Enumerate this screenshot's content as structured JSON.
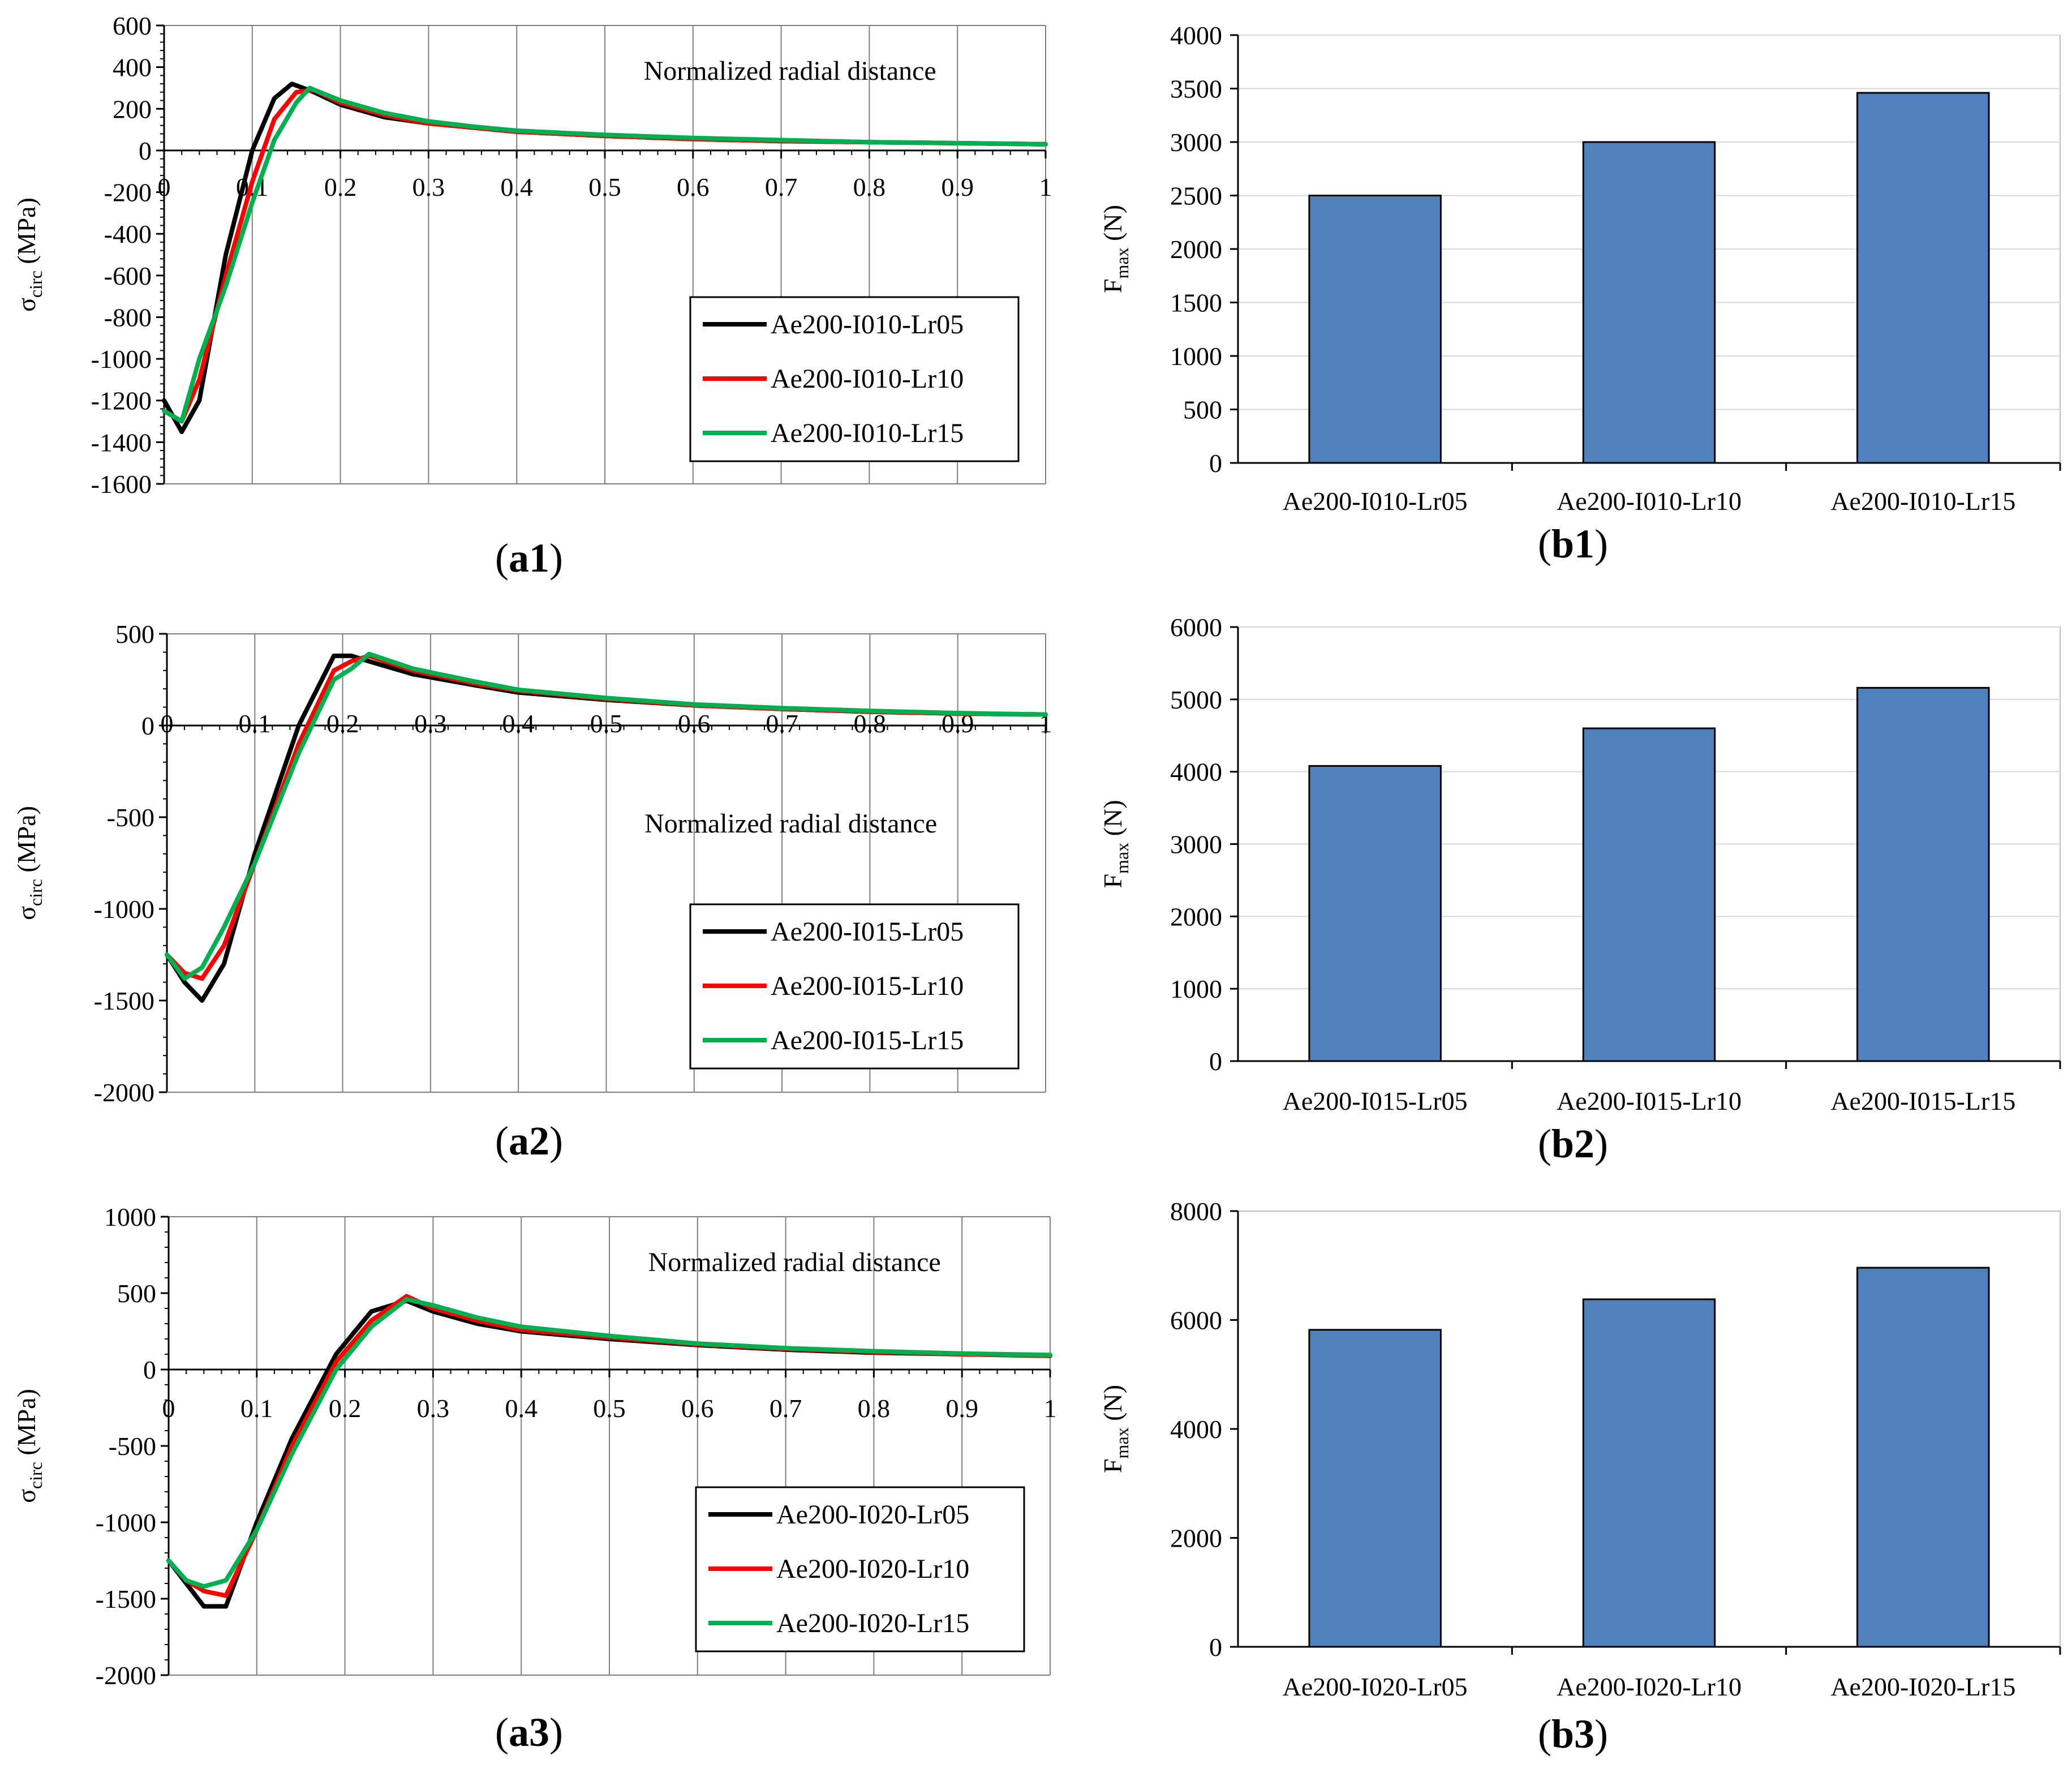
{
  "chart_data": [
    {
      "id": "a1",
      "type": "line",
      "panel_label": "a1",
      "xlabel": "Normalized radial distance",
      "ylabel_main": "σ",
      "ylabel_sub": "circ",
      "ylabel_unit": "(MPa)",
      "xlim": [
        0,
        1
      ],
      "ylim": [
        -1600,
        600
      ],
      "xticks": [
        0,
        0.1,
        0.2,
        0.3,
        0.4,
        0.5,
        0.6,
        0.7,
        0.8,
        0.9,
        1
      ],
      "xtick_labels": [
        "0",
        "0.1",
        "0.2",
        "0.3",
        "0.4",
        "0.5",
        "0.6",
        "0.7",
        "0.8",
        "0.9",
        "1"
      ],
      "yticks": [
        -1600,
        -1400,
        -1200,
        -1000,
        -800,
        -600,
        -400,
        -200,
        0,
        200,
        400,
        600
      ],
      "ytick_labels": [
        "-1600",
        "-1400",
        "-1200",
        "-1000",
        "-800",
        "-600",
        "-400",
        "-200",
        "0",
        "200",
        "400",
        "600"
      ],
      "series": [
        {
          "name": "Ae200-I010-Lr05",
          "color": "#000000",
          "x": [
            0,
            0.02,
            0.04,
            0.07,
            0.1,
            0.125,
            0.145,
            0.17,
            0.2,
            0.25,
            0.3,
            0.35,
            0.4,
            0.5,
            0.6,
            0.7,
            0.8,
            0.9,
            1.0
          ],
          "y": [
            -1200,
            -1350,
            -1200,
            -500,
            0,
            250,
            320,
            280,
            220,
            160,
            130,
            110,
            90,
            70,
            55,
            45,
            40,
            35,
            30
          ]
        },
        {
          "name": "Ae200-I010-Lr10",
          "color": "#ff0000",
          "x": [
            0,
            0.02,
            0.04,
            0.07,
            0.1,
            0.125,
            0.15,
            0.17,
            0.2,
            0.25,
            0.3,
            0.35,
            0.4,
            0.5,
            0.6,
            0.7,
            0.8,
            0.9,
            1.0
          ],
          "y": [
            -1250,
            -1300,
            -1100,
            -600,
            -150,
            150,
            280,
            290,
            230,
            170,
            130,
            110,
            90,
            70,
            55,
            45,
            40,
            35,
            30
          ]
        },
        {
          "name": "Ae200-I010-Lr15",
          "color": "#00b050",
          "x": [
            0,
            0.02,
            0.04,
            0.07,
            0.1,
            0.125,
            0.15,
            0.165,
            0.2,
            0.25,
            0.3,
            0.35,
            0.4,
            0.5,
            0.6,
            0.7,
            0.8,
            0.9,
            1.0
          ],
          "y": [
            -1250,
            -1300,
            -1000,
            -650,
            -250,
            50,
            230,
            300,
            240,
            180,
            140,
            115,
            95,
            75,
            60,
            50,
            40,
            35,
            30
          ]
        }
      ],
      "legend_position": "bottom-right",
      "xlabel_position": "top"
    },
    {
      "id": "b1",
      "type": "bar",
      "panel_label": "b1",
      "ylabel_main": "F",
      "ylabel_sub": "max",
      "ylabel_unit": "(N)",
      "categories": [
        "Ae200-I010-Lr05",
        "Ae200-I010-Lr10",
        "Ae200-I010-Lr15"
      ],
      "values": [
        2500,
        3000,
        3460
      ],
      "ylim": [
        0,
        4000
      ],
      "yticks": [
        0,
        500,
        1000,
        1500,
        2000,
        2500,
        3000,
        3500,
        4000
      ],
      "ytick_labels": [
        "0",
        "500",
        "1000",
        "1500",
        "2000",
        "2500",
        "3000",
        "3500",
        "4000"
      ],
      "grid": true,
      "bar_color": "#4f81bd"
    },
    {
      "id": "a2",
      "type": "line",
      "panel_label": "a2",
      "xlabel": "Normalized radial distance",
      "ylabel_main": "σ",
      "ylabel_sub": "circ",
      "ylabel_unit": "(MPa)",
      "xlim": [
        0,
        1
      ],
      "ylim": [
        -2000,
        500
      ],
      "xticks": [
        0,
        0.1,
        0.2,
        0.3,
        0.4,
        0.5,
        0.6,
        0.7,
        0.8,
        0.9,
        1
      ],
      "xtick_labels": [
        "0",
        "0.1",
        "0.2",
        "0.3",
        "0.4",
        "0.5",
        "0.6",
        "0.7",
        "0.8",
        "0.9",
        "1"
      ],
      "yticks": [
        -2000,
        -1500,
        -1000,
        -500,
        0,
        500
      ],
      "ytick_labels": [
        "-2000",
        "-1500",
        "-1000",
        "-500",
        "0",
        "500"
      ],
      "series": [
        {
          "name": "Ae200-I015-Lr05",
          "color": "#000000",
          "x": [
            0,
            0.02,
            0.04,
            0.065,
            0.1,
            0.15,
            0.19,
            0.21,
            0.23,
            0.28,
            0.35,
            0.4,
            0.5,
            0.6,
            0.7,
            0.8,
            0.9,
            1.0
          ],
          "y": [
            -1250,
            -1400,
            -1500,
            -1300,
            -700,
            0,
            380,
            380,
            350,
            280,
            220,
            180,
            140,
            110,
            90,
            75,
            65,
            60
          ]
        },
        {
          "name": "Ae200-I015-Lr10",
          "color": "#ff0000",
          "x": [
            0,
            0.02,
            0.04,
            0.065,
            0.1,
            0.15,
            0.19,
            0.21,
            0.23,
            0.28,
            0.35,
            0.4,
            0.5,
            0.6,
            0.7,
            0.8,
            0.9,
            1.0
          ],
          "y": [
            -1250,
            -1350,
            -1380,
            -1200,
            -750,
            -100,
            300,
            350,
            380,
            300,
            230,
            190,
            145,
            110,
            90,
            75,
            65,
            60
          ]
        },
        {
          "name": "Ae200-I015-Lr15",
          "color": "#00b050",
          "x": [
            0,
            0.02,
            0.04,
            0.065,
            0.1,
            0.15,
            0.19,
            0.21,
            0.23,
            0.28,
            0.35,
            0.4,
            0.5,
            0.6,
            0.7,
            0.8,
            0.9,
            1.0
          ],
          "y": [
            -1250,
            -1380,
            -1320,
            -1100,
            -750,
            -150,
            250,
            310,
            390,
            310,
            240,
            195,
            150,
            115,
            95,
            80,
            68,
            60
          ]
        }
      ],
      "legend_position": "bottom-right",
      "xlabel_position": "middle"
    },
    {
      "id": "b2",
      "type": "bar",
      "panel_label": "b2",
      "ylabel_main": "F",
      "ylabel_sub": "max",
      "ylabel_unit": "(N)",
      "categories": [
        "Ae200-I015-Lr05",
        "Ae200-I015-Lr10",
        "Ae200-I015-Lr15"
      ],
      "values": [
        4080,
        4600,
        5160
      ],
      "ylim": [
        0,
        6000
      ],
      "yticks": [
        0,
        1000,
        2000,
        3000,
        4000,
        5000,
        6000
      ],
      "ytick_labels": [
        "0",
        "1000",
        "2000",
        "3000",
        "4000",
        "5000",
        "6000"
      ],
      "grid": true,
      "bar_color": "#4f81bd"
    },
    {
      "id": "a3",
      "type": "line",
      "panel_label": "a3",
      "xlabel": "Normalized radial distance",
      "ylabel_main": "σ",
      "ylabel_sub": "circ",
      "ylabel_unit": "(MPa)",
      "xlim": [
        0,
        1
      ],
      "ylim": [
        -2000,
        1000
      ],
      "xticks": [
        0,
        0.1,
        0.2,
        0.3,
        0.4,
        0.5,
        0.6,
        0.7,
        0.8,
        0.9,
        1
      ],
      "xtick_labels": [
        "0",
        "0.1",
        "0.2",
        "0.3",
        "0.4",
        "0.5",
        "0.6",
        "0.7",
        "0.8",
        "0.9",
        "1"
      ],
      "yticks": [
        -2000,
        -1500,
        -1000,
        -500,
        0,
        500,
        1000
      ],
      "ytick_labels": [
        "-2000",
        "-1500",
        "-1000",
        "-500",
        "0",
        "500",
        "1000"
      ],
      "series": [
        {
          "name": "Ae200-I020-Lr05",
          "color": "#000000",
          "x": [
            0,
            0.02,
            0.04,
            0.065,
            0.1,
            0.14,
            0.19,
            0.23,
            0.27,
            0.3,
            0.35,
            0.4,
            0.5,
            0.6,
            0.7,
            0.8,
            0.9,
            1.0
          ],
          "y": [
            -1250,
            -1400,
            -1550,
            -1550,
            -1000,
            -450,
            100,
            380,
            450,
            380,
            300,
            250,
            200,
            160,
            130,
            110,
            100,
            90
          ]
        },
        {
          "name": "Ae200-I020-Lr10",
          "color": "#ff0000",
          "x": [
            0,
            0.02,
            0.04,
            0.065,
            0.1,
            0.14,
            0.19,
            0.23,
            0.27,
            0.3,
            0.35,
            0.4,
            0.5,
            0.6,
            0.7,
            0.8,
            0.9,
            1.0
          ],
          "y": [
            -1250,
            -1380,
            -1450,
            -1480,
            -1050,
            -500,
            50,
            320,
            480,
            400,
            320,
            260,
            210,
            165,
            135,
            115,
            100,
            90
          ]
        },
        {
          "name": "Ae200-I020-Lr15",
          "color": "#00b050",
          "x": [
            0,
            0.02,
            0.04,
            0.065,
            0.1,
            0.14,
            0.19,
            0.23,
            0.27,
            0.3,
            0.35,
            0.4,
            0.5,
            0.6,
            0.7,
            0.8,
            0.9,
            1.0
          ],
          "y": [
            -1250,
            -1380,
            -1420,
            -1380,
            -1050,
            -550,
            0,
            280,
            460,
            420,
            340,
            280,
            220,
            170,
            140,
            120,
            105,
            95
          ]
        }
      ],
      "legend_position": "bottom-right",
      "xlabel_position": "top"
    },
    {
      "id": "b3",
      "type": "bar",
      "panel_label": "b3",
      "ylabel_main": "F",
      "ylabel_sub": "max",
      "ylabel_unit": "(N)",
      "categories": [
        "Ae200-I020-Lr05",
        "Ae200-I020-Lr10",
        "Ae200-I020-Lr15"
      ],
      "values": [
        5820,
        6380,
        6960
      ],
      "ylim": [
        0,
        8000
      ],
      "yticks": [
        0,
        2000,
        4000,
        6000,
        8000
      ],
      "ytick_labels": [
        "0",
        "2000",
        "4000",
        "6000",
        "8000"
      ],
      "grid": false,
      "bar_color": "#4f81bd"
    }
  ]
}
